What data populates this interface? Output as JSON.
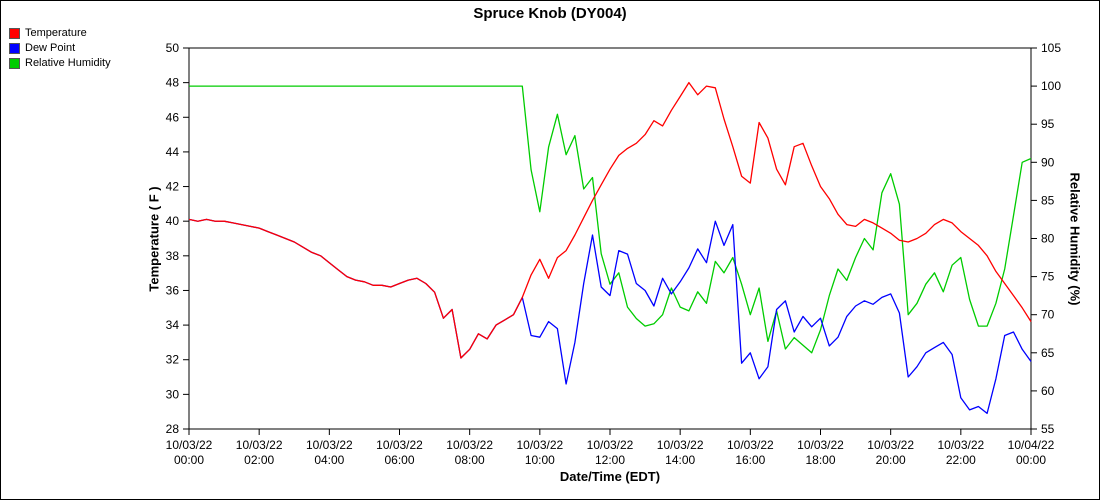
{
  "title": "Spruce Knob (DY004)",
  "chart_data": {
    "type": "line",
    "title": "Spruce Knob (DY004)",
    "x_axis": {
      "label": "Date/Time (EDT)",
      "min": 0,
      "max": 24,
      "ticks": [
        {
          "hours": 0,
          "date": "10/03/22",
          "time": "00:00"
        },
        {
          "hours": 2,
          "date": "10/03/22",
          "time": "02:00"
        },
        {
          "hours": 4,
          "date": "10/03/22",
          "time": "04:00"
        },
        {
          "hours": 6,
          "date": "10/03/22",
          "time": "06:00"
        },
        {
          "hours": 8,
          "date": "10/03/22",
          "time": "08:00"
        },
        {
          "hours": 10,
          "date": "10/03/22",
          "time": "10:00"
        },
        {
          "hours": 12,
          "date": "10/03/22",
          "time": "12:00"
        },
        {
          "hours": 14,
          "date": "10/03/22",
          "time": "14:00"
        },
        {
          "hours": 16,
          "date": "10/03/22",
          "time": "16:00"
        },
        {
          "hours": 18,
          "date": "10/03/22",
          "time": "18:00"
        },
        {
          "hours": 20,
          "date": "10/03/22",
          "time": "20:00"
        },
        {
          "hours": 22,
          "date": "10/03/22",
          "time": "22:00"
        },
        {
          "hours": 24,
          "date": "10/04/22",
          "time": "00:00"
        }
      ]
    },
    "y_left": {
      "label": "Temperature ( F )",
      "min": 28,
      "max": 50,
      "ticks": [
        28,
        30,
        32,
        34,
        36,
        38,
        40,
        42,
        44,
        46,
        48,
        50
      ]
    },
    "y_right": {
      "label": "Relative Humidity (%)",
      "min": 55,
      "max": 105,
      "ticks": [
        55,
        60,
        65,
        70,
        75,
        80,
        85,
        90,
        95,
        100,
        105
      ]
    },
    "x_hours": {
      "start": 0,
      "step": 0.25,
      "count": 97
    },
    "series": [
      {
        "name": "Temperature",
        "color": "#ff0000",
        "axis": "left",
        "values": [
          40.1,
          40.0,
          40.1,
          40.0,
          40.0,
          39.9,
          39.8,
          39.7,
          39.6,
          39.4,
          39.2,
          39.0,
          38.8,
          38.5,
          38.2,
          38.0,
          37.6,
          37.2,
          36.8,
          36.6,
          36.5,
          36.3,
          36.3,
          36.2,
          36.4,
          36.6,
          36.7,
          36.4,
          35.9,
          34.4,
          34.9,
          32.1,
          32.6,
          33.5,
          33.2,
          34.0,
          34.3,
          34.6,
          35.6,
          36.9,
          37.8,
          36.7,
          37.9,
          38.3,
          39.2,
          40.2,
          41.2,
          42.1,
          43.0,
          43.8,
          44.2,
          44.5,
          45.0,
          45.8,
          45.5,
          46.4,
          47.2,
          48.0,
          47.3,
          47.8,
          47.7,
          45.9,
          44.3,
          42.6,
          42.2,
          45.7,
          44.8,
          43.0,
          42.1,
          44.3,
          44.5,
          43.2,
          42.0,
          41.3,
          40.4,
          39.8,
          39.7,
          40.1,
          39.9,
          39.6,
          39.3,
          38.9,
          38.8,
          39.0,
          39.3,
          39.8,
          40.1,
          39.9,
          39.4,
          39.0,
          38.6,
          38.0,
          37.1,
          36.4,
          35.7,
          35.0,
          34.2
        ]
      },
      {
        "name": "Dew Point",
        "color": "#0000ff",
        "axis": "left",
        "values": [
          40.1,
          40.0,
          40.1,
          40.0,
          40.0,
          39.9,
          39.8,
          39.7,
          39.6,
          39.4,
          39.2,
          39.0,
          38.8,
          38.5,
          38.2,
          38.0,
          37.6,
          37.2,
          36.8,
          36.6,
          36.5,
          36.3,
          36.3,
          36.2,
          36.4,
          36.6,
          36.7,
          36.4,
          35.9,
          34.4,
          34.9,
          32.1,
          32.6,
          33.5,
          33.2,
          34.0,
          34.3,
          34.6,
          35.6,
          33.4,
          33.3,
          34.2,
          33.8,
          30.6,
          33.0,
          36.4,
          39.2,
          36.2,
          35.7,
          38.3,
          38.1,
          36.4,
          36.0,
          35.1,
          36.7,
          35.8,
          36.5,
          37.3,
          38.4,
          37.6,
          40.0,
          38.6,
          39.8,
          31.8,
          32.4,
          30.9,
          31.6,
          34.9,
          35.4,
          33.6,
          34.5,
          33.9,
          34.4,
          32.8,
          33.3,
          34.5,
          35.1,
          35.4,
          35.2,
          35.6,
          35.8,
          34.7,
          31.0,
          31.6,
          32.4,
          32.7,
          33.0,
          32.3,
          29.8,
          29.1,
          29.3,
          28.9,
          30.9,
          33.4,
          33.6,
          32.6,
          31.9
        ]
      },
      {
        "name": "Relative Humidity",
        "color": "#00cc00",
        "axis": "right",
        "values": [
          100,
          100,
          100,
          100,
          100,
          100,
          100,
          100,
          100,
          100,
          100,
          100,
          100,
          100,
          100,
          100,
          100,
          100,
          100,
          100,
          100,
          100,
          100,
          100,
          100,
          100,
          100,
          100,
          100,
          100,
          100,
          100,
          100,
          100,
          100,
          100,
          100,
          100,
          100,
          89.0,
          83.5,
          92.0,
          96.3,
          91.0,
          93.5,
          86.5,
          88.0,
          78.0,
          74.0,
          75.5,
          71.0,
          69.5,
          68.5,
          68.8,
          70.0,
          73.5,
          71.0,
          70.5,
          73.0,
          71.5,
          77.0,
          75.5,
          77.5,
          74.0,
          70.0,
          73.5,
          66.5,
          70.5,
          65.5,
          67.0,
          66.0,
          65.0,
          68.0,
          72.5,
          76.0,
          74.5,
          77.5,
          80.0,
          78.5,
          86.0,
          88.5,
          84.5,
          70.0,
          71.5,
          74.0,
          75.5,
          73.0,
          76.5,
          77.5,
          72.0,
          68.5,
          68.5,
          71.5,
          76.0,
          83.0,
          90.0,
          90.5
        ]
      }
    ],
    "legend_position": "top-left",
    "grid": false
  }
}
